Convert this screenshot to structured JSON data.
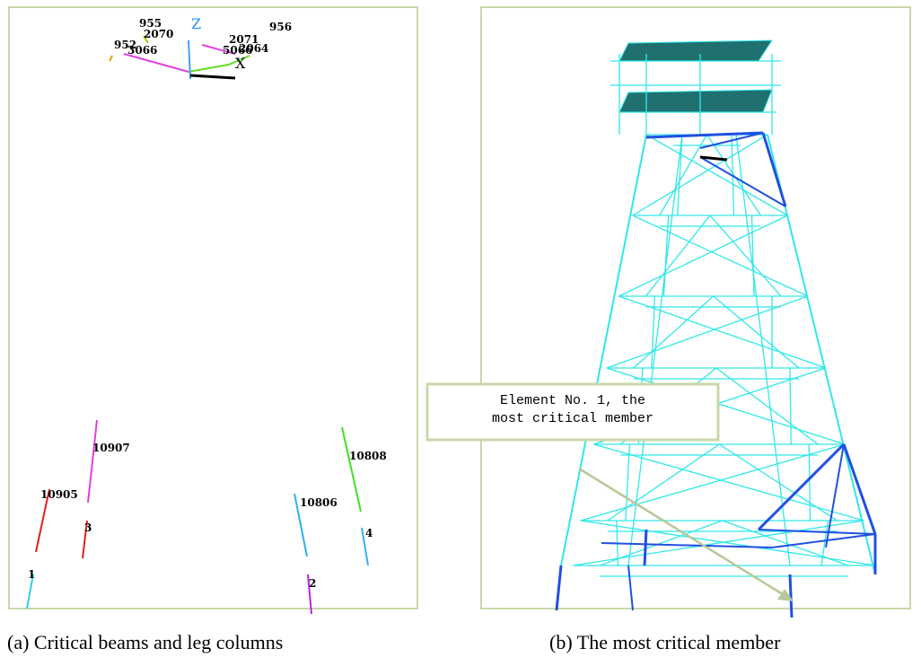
{
  "panel_a": {
    "labels": [
      "955",
      "2070",
      "Z",
      "956",
      "2071",
      "952",
      "3066",
      "5066",
      "2064",
      "X",
      "10907",
      "10905",
      "3",
      "1",
      "10808",
      "10806",
      "4",
      "2"
    ],
    "caption": "(a) Critical beams and leg columns"
  },
  "panel_b": {
    "callout": [
      "Element No. 1, the",
      "most critical member"
    ],
    "caption": "(b) The most critical member"
  }
}
